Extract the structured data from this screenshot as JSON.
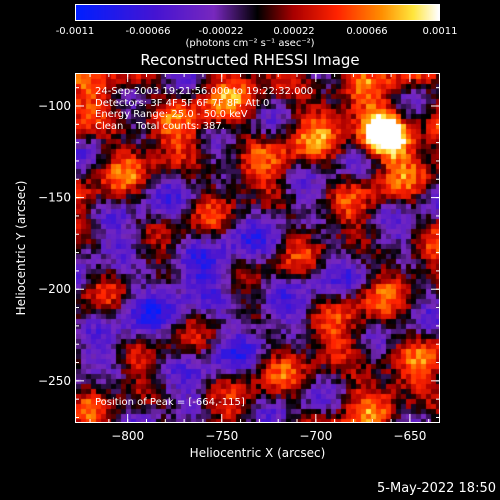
{
  "colorbar": {
    "ticks": [
      "-0.0011",
      "-0.00066",
      "-0.00022",
      "0.00022",
      "0.00066",
      "0.0011"
    ],
    "units": "(photons cm⁻² s⁻¹ asec⁻²)"
  },
  "chart_data": {
    "type": "heatmap",
    "title": "Reconstructed RHESSI Image",
    "xlabel": "Heliocentric X (arcsec)",
    "ylabel": "Heliocentric Y (arcsec)",
    "xlim": [
      -828,
      -634
    ],
    "ylim": [
      -273,
      -82
    ],
    "xticks": [
      -800,
      -750,
      -700,
      -650
    ],
    "yticks": [
      -100,
      -150,
      -200,
      -250
    ],
    "zlim": [
      -0.0011,
      0.0011
    ],
    "colormap": "rhessi-diverging (blue-purple-black-red-yellow-white)",
    "peak": {
      "x": -664,
      "y": -115
    }
  },
  "annotations": {
    "lines": [
      "24-Sep-2003 19:21:56.000 to 19:22:32.000",
      "Detectors: 3F 4F 5F 6F 7F 8F, Att 0",
      "Energy Range: 25.0 - 50.0 keV",
      "Clean    Total counts: 387."
    ],
    "peak_text": "Position of Peak = [-664,-115]"
  },
  "footer": {
    "date": "5-May-2022 18:50"
  }
}
